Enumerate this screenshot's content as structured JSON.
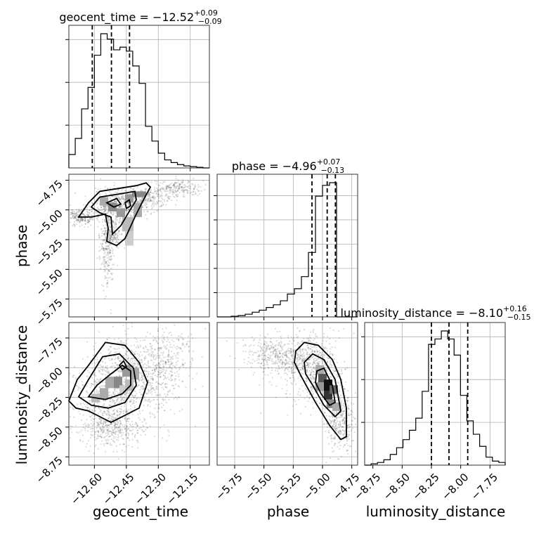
{
  "chart_data": {
    "type": "corner",
    "parameters": [
      {
        "name": "geocent_time",
        "median": -12.52,
        "plus": 0.09,
        "minus": 0.09,
        "title_prefix": "geocent_time = ",
        "title_value": "−12.52",
        "title_plus": "+0.09",
        "title_minus": "−0.09",
        "range": [
          -12.72,
          -12.06
        ],
        "ticks": [
          -12.6,
          -12.45,
          -12.3,
          -12.15
        ],
        "tick_labels": [
          "−12.60",
          "−12.45",
          "−12.30",
          "−12.15"
        ],
        "quantiles": [
          -12.61,
          -12.52,
          -12.435
        ],
        "hist_counts": [
          0.1,
          0.22,
          0.44,
          0.6,
          0.84,
          1.0,
          0.96,
          0.88,
          0.9,
          0.87,
          0.76,
          0.63,
          0.31,
          0.2,
          0.11,
          0.06,
          0.04,
          0.025,
          0.015,
          0.01,
          0.005,
          0.0
        ]
      },
      {
        "name": "phase",
        "median": -4.96,
        "plus": 0.07,
        "minus": 0.13,
        "title_prefix": "phase = ",
        "title_value": "−4.96",
        "title_plus": "+0.07",
        "title_minus": "−0.13",
        "range": [
          -5.9,
          -4.7
        ],
        "ticks": [
          -5.75,
          -5.5,
          -5.25,
          -5.0,
          -4.75
        ],
        "tick_labels": [
          "−5.75",
          "−5.50",
          "−5.25",
          "−5.00",
          "−4.75"
        ],
        "quantiles": [
          -5.09,
          -4.96,
          -4.89
        ],
        "hist_counts": [
          0.0,
          0.0,
          0.005,
          0.01,
          0.02,
          0.035,
          0.05,
          0.07,
          0.09,
          0.12,
          0.17,
          0.21,
          0.3,
          0.48,
          0.9,
          0.98,
          1.0,
          0.0,
          0.0,
          0.0
        ]
      },
      {
        "name": "luminosity_distance",
        "median": -8.1,
        "plus": 0.16,
        "minus": 0.15,
        "title_prefix": "luminosity_distance = ",
        "title_value": "−8.10",
        "title_plus": "+0.16",
        "title_minus": "−0.15",
        "range": [
          -8.82,
          -7.62
        ],
        "ticks": [
          -8.75,
          -8.5,
          -8.25,
          -8.0,
          -7.75
        ],
        "tick_labels": [
          "−8.75",
          "−8.50",
          "−8.25",
          "−8.00",
          "−7.75"
        ],
        "quantiles": [
          -8.25,
          -8.1,
          -7.94
        ],
        "hist_counts": [
          0.0,
          0.01,
          0.02,
          0.04,
          0.08,
          0.13,
          0.19,
          0.26,
          0.35,
          0.55,
          0.9,
          0.94,
          1.0,
          0.94,
          0.82,
          0.52,
          0.33,
          0.23,
          0.14,
          0.06,
          0.03,
          0.02
        ]
      }
    ],
    "pairs": [
      {
        "x": "geocent_time",
        "y": "phase"
      },
      {
        "x": "geocent_time",
        "y": "luminosity_distance"
      },
      {
        "x": "phase",
        "y": "luminosity_distance"
      }
    ],
    "grid": true
  }
}
